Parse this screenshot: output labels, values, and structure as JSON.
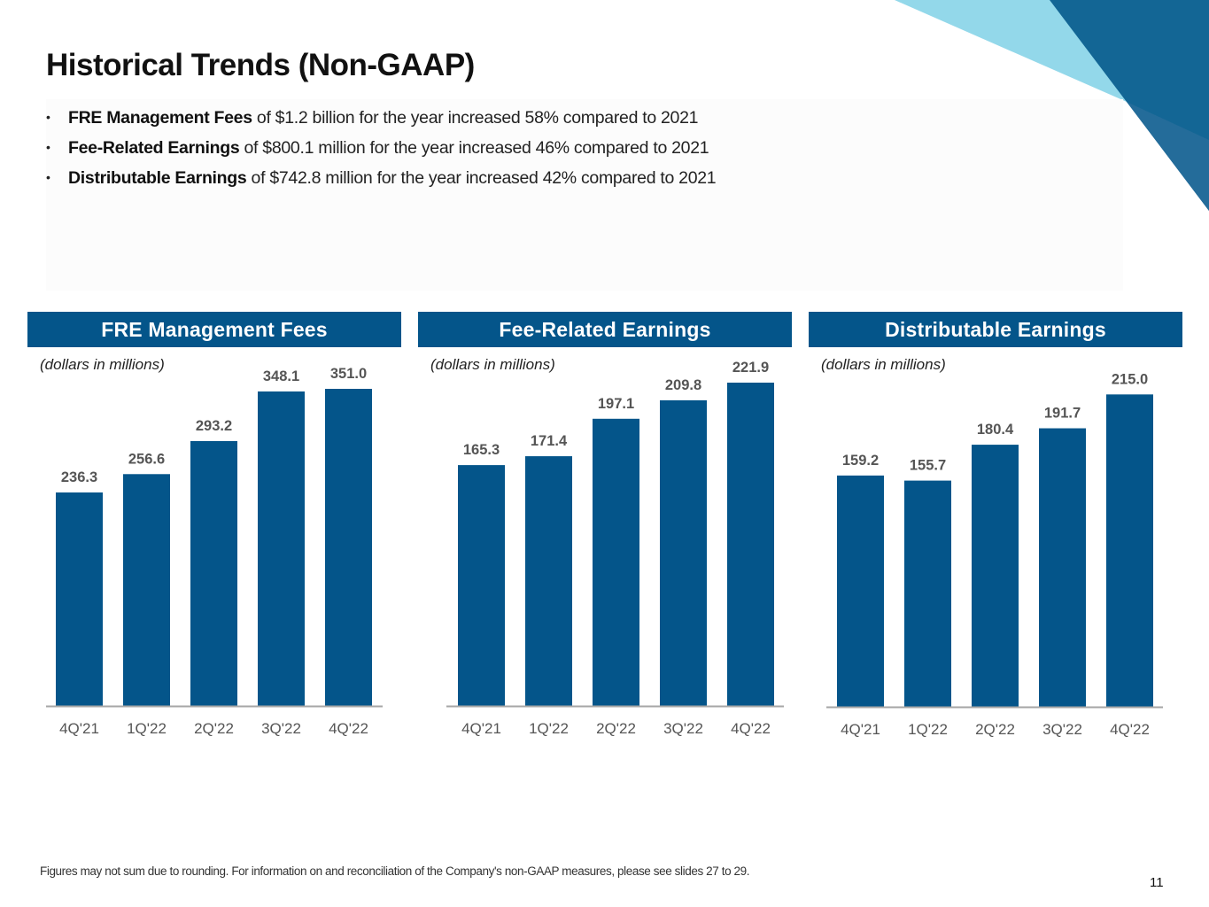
{
  "slide": {
    "title": "Historical Trends (Non-GAAP)",
    "bullets": [
      {
        "bold": "FRE Management Fees",
        "text": " of $1.2 billion for the year increased 58% compared to 2021"
      },
      {
        "bold": "Fee-Related Earnings",
        "text": " of $800.1 million for the year increased 46% compared to 2021"
      },
      {
        "bold": "Distributable Earnings",
        "text": " of $742.8 million for the year increased 42% compared to 2021"
      }
    ],
    "bullet_glyph": "•",
    "footnote": "Figures may not sum due to rounding. For information on and reconciliation of the Company's non-GAAP measures, please see slides 27 to 29.",
    "page_number": "11",
    "colors": {
      "bar": "#04558a",
      "header": "#04558a",
      "accent_light": "#93d8ea",
      "accent_dark": "#136695",
      "accent_mid": "#246c9a",
      "axis": "#a6a6a6",
      "label": "#555555"
    }
  },
  "chart_data": [
    {
      "type": "bar",
      "title": "FRE Management Fees",
      "subtitle": "(dollars in millions)",
      "xlabel": "",
      "ylabel": "",
      "categories": [
        "4Q'21",
        "1Q'22",
        "2Q'22",
        "3Q'22",
        "4Q'22"
      ],
      "values": [
        236.3,
        256.6,
        293.2,
        348.1,
        351.0
      ],
      "value_labels": [
        "236.3",
        "256.6",
        "293.2",
        "348.1",
        "351.0"
      ],
      "ylim": [
        0,
        351.0
      ],
      "grid": false,
      "legend": "none"
    },
    {
      "type": "bar",
      "title": "Fee-Related Earnings",
      "subtitle": "(dollars in millions)",
      "xlabel": "",
      "ylabel": "",
      "categories": [
        "4Q'21",
        "1Q'22",
        "2Q'22",
        "3Q'22",
        "4Q'22"
      ],
      "values": [
        165.3,
        171.4,
        197.1,
        209.8,
        221.9
      ],
      "value_labels": [
        "165.3",
        "171.4",
        "197.1",
        "209.8",
        "221.9"
      ],
      "ylim": [
        0,
        221.9
      ],
      "grid": false,
      "legend": "none"
    },
    {
      "type": "bar",
      "title": "Distributable Earnings",
      "subtitle": "(dollars in millions)",
      "xlabel": "",
      "ylabel": "",
      "categories": [
        "4Q'21",
        "1Q'22",
        "2Q'22",
        "3Q'22",
        "4Q'22"
      ],
      "values": [
        159.2,
        155.7,
        180.4,
        191.7,
        215.0
      ],
      "value_labels": [
        "159.2",
        "155.7",
        "180.4",
        "191.7",
        "215.0"
      ],
      "ylim": [
        0,
        221.9
      ],
      "grid": false,
      "legend": "none"
    }
  ]
}
